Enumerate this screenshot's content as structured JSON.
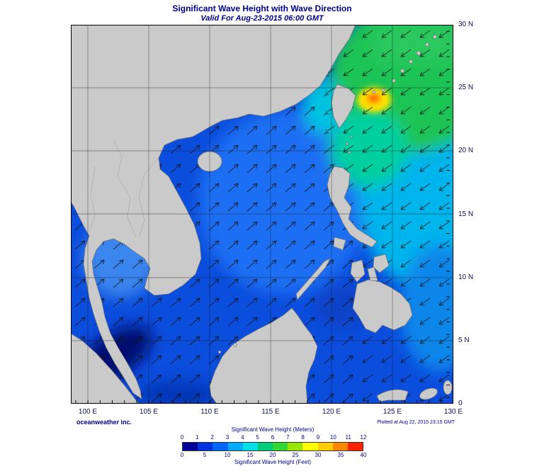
{
  "title": "Significant Wave Height with Wave Direction",
  "subtitle": "Valid For Aug-23-2015 06:00 GMT",
  "branding": "oceanweather inc.",
  "plotted_at": "Plotted at Aug 22, 2015 23:15 GMT",
  "axes": {
    "lat_labels": [
      "30 N",
      "25 N",
      "20 N",
      "15 N",
      "10 N",
      "5 N",
      "0"
    ],
    "lon_labels": [
      "100 E",
      "105 E",
      "110 E",
      "115 E",
      "120 E",
      "125 E",
      "130 E"
    ]
  },
  "legend": {
    "meters_label": "Significant Wave Height (Meters)",
    "meter_ticks": [
      "0",
      "1",
      "2",
      "3",
      "4",
      "5",
      "6",
      "7",
      "8",
      "9",
      "10",
      "11",
      "12"
    ],
    "colors": [
      "#000099",
      "#0033e0",
      "#0066ff",
      "#00aaff",
      "#00e0e8",
      "#00cc7a",
      "#33d633",
      "#99e600",
      "#ffff00",
      "#ffcc00",
      "#ff8800",
      "#ff2200"
    ],
    "feet_ticks": [
      "0",
      "5",
      "10",
      "15",
      "20",
      "25",
      "30",
      "35",
      "40"
    ],
    "feet_label": "Significant Wave Height (Feet)"
  },
  "chart_data": {
    "type": "heatmap",
    "title": "Significant Wave Height with Wave Direction",
    "valid_time": "Aug-23-2015 06:00 GMT",
    "plotted_time": "Aug 22, 2015 23:15 GMT",
    "region": {
      "lon_min": "100 E",
      "lon_max": "130 E",
      "lat_min": "0",
      "lat_max": "30 N"
    },
    "x_tick_labels": [
      "100 E",
      "105 E",
      "110 E",
      "115 E",
      "120 E",
      "125 E",
      "130 E"
    ],
    "y_tick_labels": [
      "0",
      "5 N",
      "10 N",
      "15 N",
      "20 N",
      "25 N",
      "30 N"
    ],
    "grid": "5 degree graticule on",
    "colorbar": {
      "units_primary": "Meters",
      "ticks_m": [
        0,
        1,
        2,
        3,
        4,
        5,
        6,
        7,
        8,
        9,
        10,
        11,
        12
      ],
      "units_secondary": "Feet",
      "ticks_ft": [
        0,
        5,
        10,
        15,
        20,
        25,
        30,
        35,
        40
      ],
      "colors": [
        "#000099",
        "#0033e0",
        "#0066ff",
        "#00aaff",
        "#00e0e8",
        "#00cc7a",
        "#33d633",
        "#99e600",
        "#ffff00",
        "#ffcc00",
        "#ff8800",
        "#ff2200"
      ],
      "position": "bottom center"
    },
    "features": [
      {
        "area": "East of Taiwan (~123.5E, 24N)",
        "wave_height_m": 9,
        "note": "peak; yellow-orange-red core"
      },
      {
        "area": "East China Sea / NW Pacific northeast of Taiwan",
        "wave_height_m": 5
      },
      {
        "area": "Luzon Strait",
        "wave_height_m": 4
      },
      {
        "area": "Philippine Sea east of Luzon",
        "wave_height_m": 3.5
      },
      {
        "area": "Central South China Sea",
        "wave_height_m": 2
      },
      {
        "area": "Gulf of Thailand",
        "wave_height_m": 1.5
      },
      {
        "area": "Sulu and Celebes Seas",
        "wave_height_m": 1
      },
      {
        "area": "Malacca Strait (southwest corner)",
        "wave_height_m": 0.5
      }
    ],
    "wave_direction": {
      "south_china_sea": "arrows point toward NE",
      "philippine_sea_and_east_china_sea": "arrows point toward SW"
    }
  }
}
